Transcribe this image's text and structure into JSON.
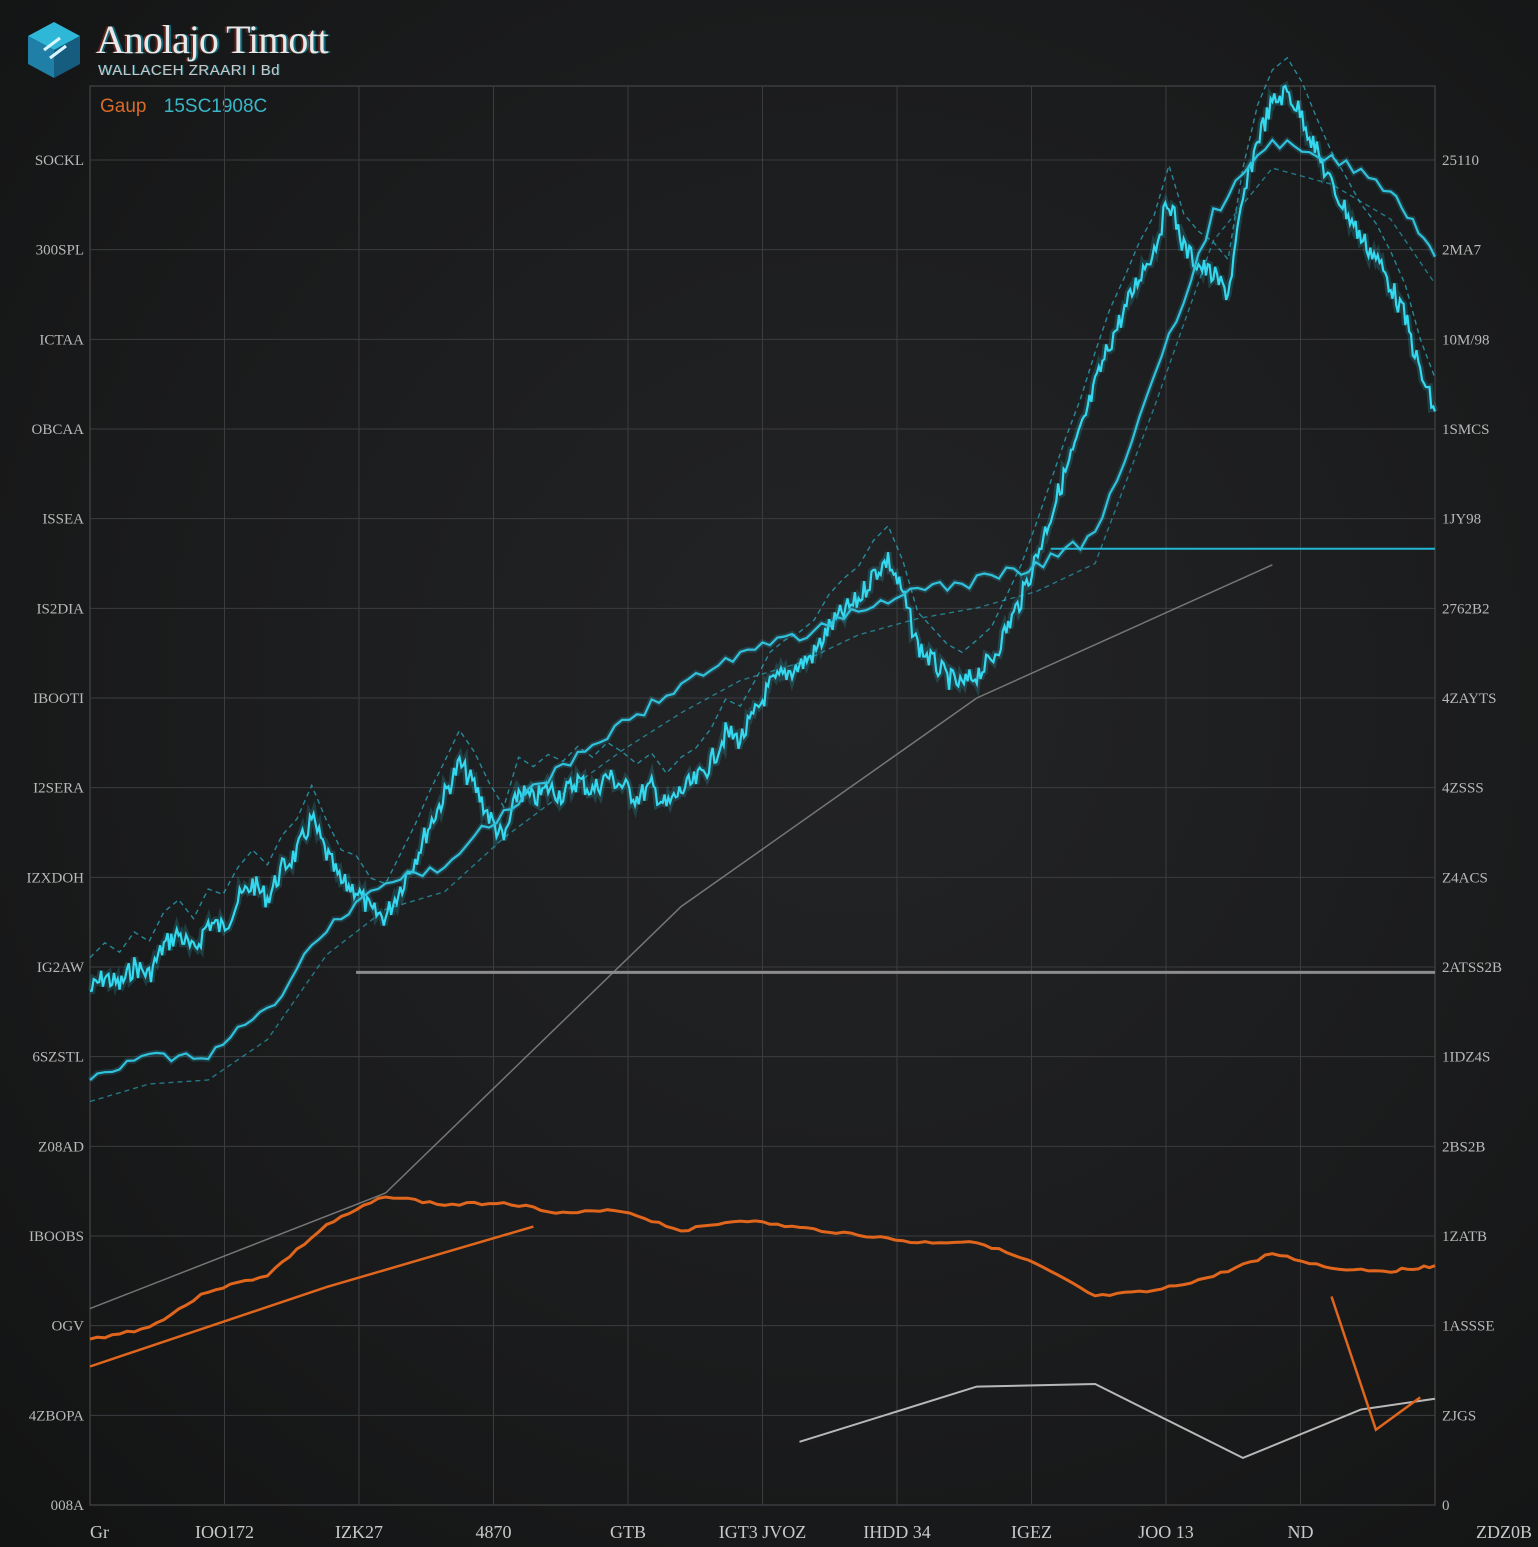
{
  "header": {
    "title": "Anolajo Timott",
    "subtitle": "WALLACEH ZRAARI I Bd",
    "group_label": "Gaup",
    "group_value": "15SC1908C"
  },
  "colors": {
    "background": "#1b1c1d",
    "grid": "#3a3c3f",
    "series_main": "#34d8ef",
    "series_secondary": "#30c2dc",
    "envelope": "#2ab7cf",
    "indicator": "#e0661d",
    "baseline": "#8c8c8c",
    "level_line": "#23b6d4"
  },
  "chart_data": {
    "type": "line",
    "title": "Anolajo Timott",
    "subtitle": "WALLACEH ZRAARI I Bd",
    "y_left_ticks": [
      "SOCKL",
      "300SPL",
      "ICTAA",
      "OBCAA",
      "ISSEA",
      "IS2DIA",
      "IBOOTI",
      "I2SERA",
      "IZXDOH",
      "IG2AW",
      "6SZSTL",
      "Z08AD",
      "IBOOBS",
      "OGV",
      "4ZBOPA",
      "008A"
    ],
    "y_right_ticks": [
      "25110",
      "2MA7",
      "10M/98",
      "1SMCS",
      "1JY98",
      "2762B2",
      "4ZAYTS",
      "4ZSSS",
      "Z4ACS",
      "2ATSS2B",
      "1IDZ4S",
      "2BS2B",
      "1ZATB",
      "1ASSSE",
      "ZJGS",
      "0"
    ],
    "x_ticks": [
      "Gr",
      "IOO172",
      "IZK27",
      "4870",
      "GTB",
      "IGT3 JVOZ",
      "IHDD 34",
      "IGEZ",
      "JOO 13",
      "ND",
      "ZDZ0B"
    ],
    "ylim": [
      0,
      100
    ],
    "grid": true,
    "legend": "none",
    "series": [
      {
        "role": "upper",
        "x": [
          0,
          1,
          2,
          3,
          4,
          5,
          6,
          7,
          8,
          9,
          10,
          11,
          12,
          13,
          14,
          15,
          16,
          17,
          18,
          19,
          20,
          21,
          22,
          23,
          24,
          25,
          26,
          27,
          28,
          29,
          30,
          31,
          32,
          33,
          34,
          35,
          36,
          37,
          38,
          39,
          40,
          41,
          42,
          43,
          44,
          45,
          46,
          47,
          48,
          49,
          50,
          51,
          52,
          53,
          54,
          55,
          56,
          57,
          58,
          59,
          60,
          61,
          62,
          63,
          64,
          65,
          66,
          67,
          68,
          69,
          70,
          71,
          72,
          73,
          74,
          75,
          76,
          77,
          78,
          79,
          80,
          81,
          82,
          83,
          84,
          85,
          86,
          87,
          88,
          89,
          90,
          91
        ],
        "values": [
          38.2,
          39.3,
          38.6,
          40.1,
          39.4,
          41.6,
          42.5,
          41.1,
          43.3,
          42.9,
          44.9,
          46.2,
          45.1,
          47.3,
          48.5,
          51.0,
          48.4,
          46.2,
          45.8,
          44.1,
          43.7,
          45.9,
          48.1,
          50.6,
          52.8,
          55.1,
          53.5,
          51.2,
          49.4,
          53.1,
          52.4,
          53.3,
          52.8,
          53.9,
          53.1,
          54.2,
          53.5,
          52.6,
          53.4,
          51.9,
          53.1,
          53.8,
          55.2,
          57.4,
          56.9,
          58.8,
          60.9,
          61.8,
          62.4,
          63.3,
          65.2,
          66.4,
          67.3,
          69.2,
          70.3,
          67.7,
          63.9,
          62.7,
          61.5,
          60.9,
          61.8,
          62.8,
          65.1,
          67.4,
          70.4,
          73.6,
          76.8,
          79.7,
          83.2,
          86.4,
          88.8,
          91.4,
          93.4,
          97.1,
          93.5,
          92.2,
          91.4,
          90.1,
          96.9,
          101.6,
          104.2,
          105.1,
          103.3,
          100.6,
          98.1,
          96.2,
          94.2,
          92.8,
          90.7,
          88.2,
          84.2,
          81.3
        ]
      },
      {
        "role": "lower",
        "x": [
          0,
          4,
          8,
          12,
          16,
          20,
          24,
          28,
          32,
          36,
          40,
          44,
          48,
          52,
          56,
          60,
          64,
          68,
          72,
          76,
          80,
          84,
          88,
          91
        ],
        "values": [
          32.0,
          33.3,
          33.6,
          36.6,
          42.9,
          46.3,
          47.6,
          51.6,
          54.9,
          58.1,
          60.9,
          63.3,
          64.6,
          66.7,
          67.9,
          68.7,
          69.9,
          72.0,
          83.6,
          96.0,
          101.4,
          100.2,
          97.6,
          92.8
        ]
      }
    ],
    "indicator": {
      "x": [
        0,
        4,
        8,
        12,
        16,
        20,
        24,
        28,
        32,
        36,
        40,
        44,
        48,
        52,
        56,
        60,
        64,
        68,
        72,
        76,
        80,
        84,
        88,
        91
      ],
      "values": [
        12.3,
        13.2,
        15.9,
        17.1,
        20.8,
        23.0,
        22.3,
        22.5,
        21.7,
        21.9,
        20.4,
        21.2,
        20.6,
        20.1,
        19.5,
        19.6,
        17.9,
        15.5,
        15.9,
        17.0,
        18.7,
        17.6,
        17.4,
        17.8
      ]
    },
    "level_lines": [
      {
        "y": 71.1,
        "x_start": 65
      },
      {
        "y": 39.6,
        "x_start": 18
      }
    ]
  }
}
